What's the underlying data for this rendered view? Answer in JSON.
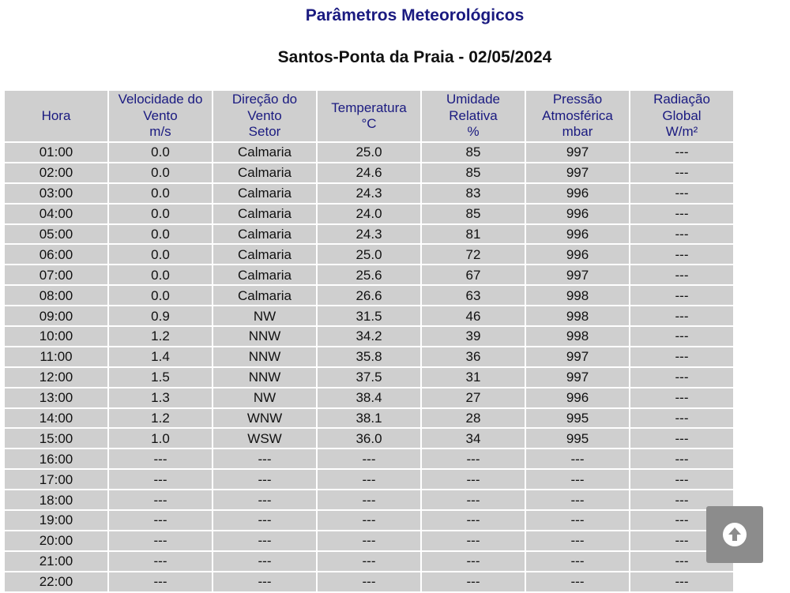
{
  "page": {
    "title": "Parâmetros Meteorológicos",
    "subtitle": "Santos-Ponta da Praia - 02/05/2024"
  },
  "table": {
    "headers": [
      [
        "Hora"
      ],
      [
        "Velocidade do",
        "Vento",
        "m/s"
      ],
      [
        "Direção do",
        "Vento",
        "Setor"
      ],
      [
        "Temperatura",
        "°C"
      ],
      [
        "Umidade",
        "Relativa",
        "%"
      ],
      [
        "Pressão",
        "Atmosférica",
        "mbar"
      ],
      [
        "Radiação",
        "Global",
        "W/m²"
      ]
    ],
    "rows": [
      [
        "01:00",
        "0.0",
        "Calmaria",
        "25.0",
        "85",
        "997",
        "---"
      ],
      [
        "02:00",
        "0.0",
        "Calmaria",
        "24.6",
        "85",
        "997",
        "---"
      ],
      [
        "03:00",
        "0.0",
        "Calmaria",
        "24.3",
        "83",
        "996",
        "---"
      ],
      [
        "04:00",
        "0.0",
        "Calmaria",
        "24.0",
        "85",
        "996",
        "---"
      ],
      [
        "05:00",
        "0.0",
        "Calmaria",
        "24.3",
        "81",
        "996",
        "---"
      ],
      [
        "06:00",
        "0.0",
        "Calmaria",
        "25.0",
        "72",
        "996",
        "---"
      ],
      [
        "07:00",
        "0.0",
        "Calmaria",
        "25.6",
        "67",
        "997",
        "---"
      ],
      [
        "08:00",
        "0.0",
        "Calmaria",
        "26.6",
        "63",
        "998",
        "---"
      ],
      [
        "09:00",
        "0.9",
        "NW",
        "31.5",
        "46",
        "998",
        "---"
      ],
      [
        "10:00",
        "1.2",
        "NNW",
        "34.2",
        "39",
        "998",
        "---"
      ],
      [
        "11:00",
        "1.4",
        "NNW",
        "35.8",
        "36",
        "997",
        "---"
      ],
      [
        "12:00",
        "1.5",
        "NNW",
        "37.5",
        "31",
        "997",
        "---"
      ],
      [
        "13:00",
        "1.3",
        "NW",
        "38.4",
        "27",
        "996",
        "---"
      ],
      [
        "14:00",
        "1.2",
        "WNW",
        "38.1",
        "28",
        "995",
        "---"
      ],
      [
        "15:00",
        "1.0",
        "WSW",
        "36.0",
        "34",
        "995",
        "---"
      ],
      [
        "16:00",
        "---",
        "---",
        "---",
        "---",
        "---",
        "---"
      ],
      [
        "17:00",
        "---",
        "---",
        "---",
        "---",
        "---",
        "---"
      ],
      [
        "18:00",
        "---",
        "---",
        "---",
        "---",
        "---",
        "---"
      ],
      [
        "19:00",
        "---",
        "---",
        "---",
        "---",
        "---",
        "---"
      ],
      [
        "20:00",
        "---",
        "---",
        "---",
        "---",
        "---",
        "---"
      ],
      [
        "21:00",
        "---",
        "---",
        "---",
        "---",
        "---",
        "---"
      ],
      [
        "22:00",
        "---",
        "---",
        "---",
        "---",
        "---",
        "---"
      ]
    ]
  },
  "scroll_top_button": {
    "icon": "arrow-up-circle-icon"
  },
  "colors": {
    "heading_blue": "#1a1a80",
    "cell_gray": "#cfcfcf",
    "button_gray": "#8c8c8c"
  }
}
